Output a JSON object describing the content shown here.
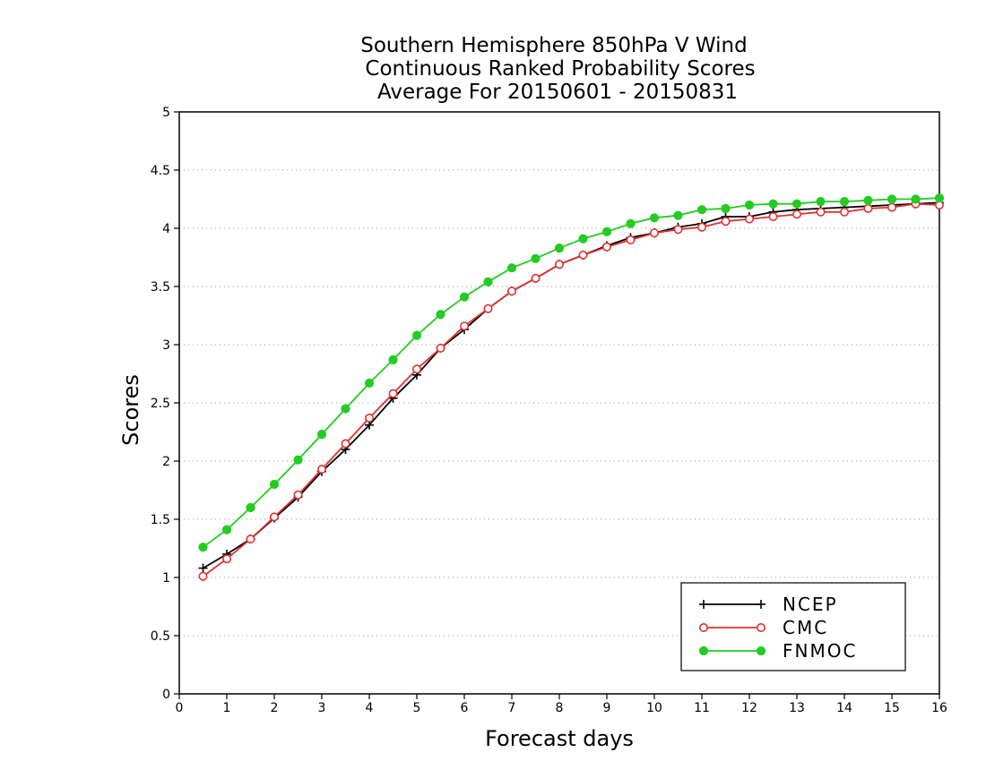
{
  "chart_data": {
    "type": "line",
    "title_lines": [
      "Southern Hemisphere 850hPa V Wind",
      "Continuous Ranked Probability Scores",
      "Average For 20150601 - 20150831"
    ],
    "xlabel": "Forecast days",
    "ylabel": "Scores",
    "xlim": [
      0,
      16
    ],
    "ylim": [
      0,
      5
    ],
    "x_ticks": [
      "0",
      "1",
      "2",
      "3",
      "4",
      "5",
      "6",
      "7",
      "8",
      "9",
      "10",
      "11",
      "12",
      "13",
      "14",
      "15",
      "16"
    ],
    "y_ticks": [
      "0",
      "0.5",
      "1",
      "1.5",
      "2",
      "2.5",
      "3",
      "3.5",
      "4",
      "4.5",
      "5"
    ],
    "grid": "horizontal dotted",
    "legend_position": "bottom-right",
    "x": [
      0.5,
      1,
      1.5,
      2,
      2.5,
      3,
      3.5,
      4,
      4.5,
      5,
      5.5,
      6,
      6.5,
      7,
      7.5,
      8,
      8.5,
      9,
      9.5,
      10,
      10.5,
      11,
      11.5,
      12,
      12.5,
      13,
      13.5,
      14,
      14.5,
      15,
      15.5,
      16
    ],
    "series": [
      {
        "name": "NCEP",
        "color": "#000000",
        "marker": "plus",
        "values": [
          1.08,
          1.2,
          1.33,
          1.51,
          1.69,
          1.91,
          2.1,
          2.31,
          2.54,
          2.74,
          2.97,
          3.13,
          3.31,
          3.46,
          3.57,
          3.69,
          3.77,
          3.85,
          3.92,
          3.96,
          4.01,
          4.04,
          4.1,
          4.1,
          4.14,
          4.16,
          4.17,
          4.18,
          4.19,
          4.2,
          4.21,
          4.22
        ]
      },
      {
        "name": "CMC",
        "color": "#e03030",
        "marker": "open-circle",
        "values": [
          1.01,
          1.16,
          1.33,
          1.52,
          1.71,
          1.93,
          2.15,
          2.37,
          2.58,
          2.79,
          2.97,
          3.16,
          3.31,
          3.46,
          3.57,
          3.69,
          3.77,
          3.84,
          3.9,
          3.96,
          3.99,
          4.01,
          4.06,
          4.08,
          4.1,
          4.12,
          4.14,
          4.14,
          4.17,
          4.18,
          4.21,
          4.2
        ]
      },
      {
        "name": "FNMOC",
        "color": "#22cc22",
        "marker": "filled-circle",
        "values": [
          1.26,
          1.41,
          1.6,
          1.8,
          2.01,
          2.23,
          2.45,
          2.67,
          2.87,
          3.08,
          3.26,
          3.41,
          3.54,
          3.66,
          3.74,
          3.83,
          3.91,
          3.97,
          4.04,
          4.09,
          4.11,
          4.16,
          4.17,
          4.2,
          4.21,
          4.21,
          4.23,
          4.23,
          4.24,
          4.25,
          4.25,
          4.26
        ]
      }
    ]
  }
}
